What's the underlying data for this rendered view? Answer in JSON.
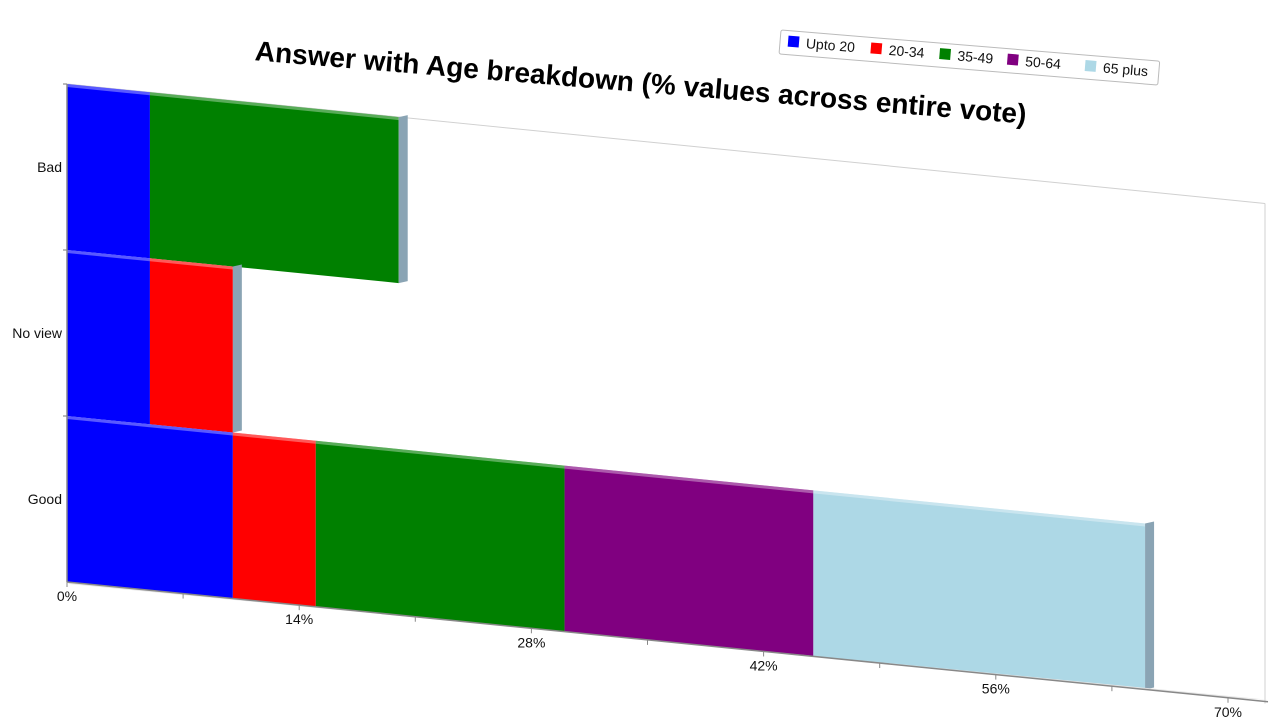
{
  "chart_data": {
    "type": "bar",
    "orientation": "horizontal",
    "stacked": true,
    "title": "Answer with Age breakdown (% values across entire vote)",
    "categories": [
      "Bad",
      "No view",
      "Good"
    ],
    "series": [
      {
        "name": "Upto 20",
        "color": "#0000ff",
        "values": [
          5,
          5,
          10
        ]
      },
      {
        "name": "20-34",
        "color": "#ff0000",
        "values": [
          0,
          5,
          5
        ]
      },
      {
        "name": "35-49",
        "color": "#008000",
        "values": [
          15,
          0,
          15
        ]
      },
      {
        "name": "50-64",
        "color": "#800080",
        "values": [
          0,
          0,
          15
        ]
      },
      {
        "name": "65 plus",
        "color": "#add8e6",
        "values": [
          0,
          0,
          20
        ]
      }
    ],
    "xlim": [
      0,
      70
    ],
    "x_ticks": [
      "0%",
      "14%",
      "28%",
      "42%",
      "56%",
      "70%"
    ],
    "x_tick_values": [
      0,
      14,
      28,
      42,
      56,
      70
    ],
    "legend_position": "top-right",
    "grid": false,
    "perspective": "3d"
  }
}
